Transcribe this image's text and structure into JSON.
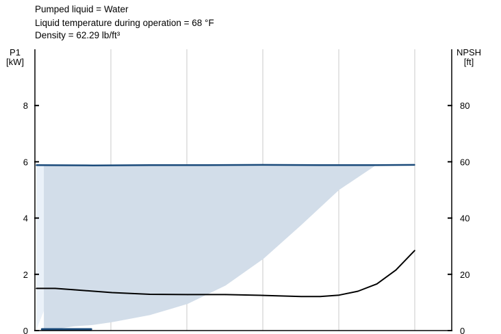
{
  "info_lines": [
    "Pumped liquid = Water",
    "Liquid temperature during operation = 68 °F",
    "Density = 62.29 lb/ft³"
  ],
  "colors": {
    "axis": "#000000",
    "grid": "#c8c8c8",
    "power_line": "#1a4a7a",
    "power_band_light": "#eaf1f9",
    "power_band": "#d2dde9",
    "npsh_line": "#000000",
    "low_flow_bar": "#1a4a7a"
  },
  "chart_data": {
    "type": "line",
    "title": "",
    "xlabel": "",
    "left_axis": {
      "label_line1": "P1",
      "label_line2": "[kW]",
      "ylim": [
        0,
        10
      ],
      "ticks": [
        0,
        2,
        4,
        6,
        8
      ]
    },
    "right_axis": {
      "label_line1": "NPSH",
      "label_line2": "[ft]",
      "ylim": [
        0,
        100
      ],
      "ticks": [
        0,
        20,
        40,
        60,
        80
      ]
    },
    "x_range": [
      0,
      100
    ],
    "grid": true,
    "series": [
      {
        "axis": "left",
        "x": [
          0,
          15,
          30,
          45,
          60,
          75,
          90,
          100
        ],
        "values": [
          5.88,
          5.87,
          5.88,
          5.88,
          5.89,
          5.88,
          5.88,
          5.89
        ]
      },
      {
        "axis": "right",
        "x": [
          0,
          5,
          10,
          20,
          30,
          40,
          50,
          60,
          70,
          75,
          80,
          85,
          90,
          95,
          100
        ],
        "values": [
          15,
          15,
          14.5,
          13.5,
          12.9,
          12.8,
          12.8,
          12.5,
          12.1,
          12.1,
          12.6,
          14,
          16.6,
          21.5,
          28.5
        ]
      }
    ],
    "areas": [
      {
        "axis": "left",
        "x": [
          0,
          0.5,
          2,
          4,
          6,
          8,
          10,
          11.5,
          11.5
        ],
        "upper": [
          5.9,
          5.9,
          5.9,
          5.9,
          5.9,
          5.9,
          5.9,
          5.9,
          5.9
        ],
        "lower": [
          0,
          0.2,
          0.7,
          1.6,
          2.8,
          4.3,
          5.4,
          5.9,
          5.9
        ]
      },
      {
        "axis": "left",
        "x": [
          2,
          5,
          10,
          15,
          20,
          30,
          40,
          50,
          60,
          70,
          80,
          90,
          95,
          100
        ],
        "upper": [
          5.9,
          5.9,
          5.9,
          5.9,
          5.9,
          5.9,
          5.9,
          5.9,
          5.9,
          5.9,
          5.9,
          5.9,
          5.9,
          5.9
        ],
        "lower": [
          0,
          0.05,
          0.15,
          0.2,
          0.3,
          0.55,
          0.95,
          1.6,
          2.55,
          3.75,
          5.0,
          5.9,
          5.9,
          5.9
        ]
      }
    ],
    "low_flow_bar": {
      "axis": "left",
      "x": [
        1.5,
        14.5
      ],
      "value": 0.05
    }
  }
}
